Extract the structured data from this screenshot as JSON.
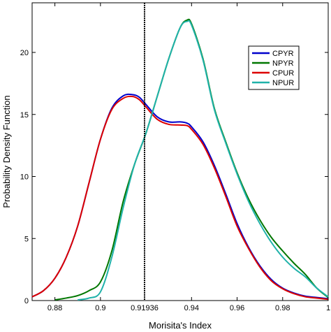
{
  "chart_data": {
    "type": "line",
    "title": "",
    "xlabel": "Morisita's Index",
    "ylabel": "Probability Density Function",
    "xlim": [
      0.87,
      1.0
    ],
    "ylim": [
      0,
      24
    ],
    "xticks": [
      0.88,
      0.9,
      0.94,
      0.96,
      0.98,
      1
    ],
    "xtick_labels": [
      "0.88",
      "0.9",
      "0.94",
      "0.96",
      "0.98",
      "1"
    ],
    "yticks": [
      0,
      5,
      10,
      15,
      20
    ],
    "ytick_labels": [
      "0",
      "5",
      "10",
      "15",
      "20"
    ],
    "vline": {
      "x": 0.91936,
      "label": "0.91936",
      "color": "#000000"
    },
    "legend_position": "top-right",
    "grid": false,
    "series": [
      {
        "name": "CPYR",
        "color": "#0000cc",
        "x": [
          0.87,
          0.875,
          0.88,
          0.885,
          0.89,
          0.895,
          0.9,
          0.905,
          0.91,
          0.914,
          0.917,
          0.92,
          0.925,
          0.93,
          0.935,
          0.938,
          0.94,
          0.945,
          0.95,
          0.955,
          0.96,
          0.965,
          0.97,
          0.975,
          0.98,
          0.985,
          0.99,
          0.995,
          1.0
        ],
        "y": [
          0.3,
          0.8,
          1.8,
          3.5,
          6.0,
          9.5,
          13.0,
          15.5,
          16.5,
          16.6,
          16.4,
          15.8,
          14.8,
          14.4,
          14.4,
          14.3,
          14.0,
          12.8,
          10.9,
          8.6,
          6.2,
          4.3,
          2.8,
          1.7,
          1.0,
          0.6,
          0.35,
          0.25,
          0.15
        ]
      },
      {
        "name": "NPYR",
        "color": "#007700",
        "x": [
          0.88,
          0.885,
          0.89,
          0.895,
          0.9,
          0.905,
          0.91,
          0.915,
          0.92,
          0.925,
          0.93,
          0.935,
          0.938,
          0.94,
          0.945,
          0.95,
          0.955,
          0.96,
          0.965,
          0.97,
          0.975,
          0.98,
          0.985,
          0.99,
          0.995,
          1.0
        ],
        "y": [
          0.05,
          0.2,
          0.4,
          0.8,
          1.5,
          4.0,
          8.0,
          11.0,
          13.5,
          16.5,
          19.5,
          22.0,
          22.6,
          22.3,
          19.5,
          15.5,
          12.8,
          10.3,
          8.2,
          6.5,
          5.1,
          4.0,
          3.0,
          2.1,
          1.0,
          0.25
        ]
      },
      {
        "name": "CPUR",
        "color": "#dd0000",
        "x": [
          0.87,
          0.875,
          0.88,
          0.885,
          0.89,
          0.895,
          0.9,
          0.905,
          0.91,
          0.914,
          0.917,
          0.92,
          0.925,
          0.93,
          0.935,
          0.938,
          0.94,
          0.945,
          0.95,
          0.955,
          0.96,
          0.965,
          0.97,
          0.975,
          0.98,
          0.985,
          0.99,
          0.995,
          1.0
        ],
        "y": [
          0.3,
          0.8,
          1.8,
          3.5,
          6.0,
          9.5,
          13.0,
          15.4,
          16.3,
          16.45,
          16.2,
          15.6,
          14.6,
          14.2,
          14.15,
          14.1,
          13.8,
          12.6,
          10.7,
          8.4,
          6.0,
          4.2,
          2.7,
          1.6,
          0.95,
          0.55,
          0.3,
          0.2,
          0.1
        ]
      },
      {
        "name": "NPUR",
        "color": "#20b2aa",
        "x": [
          0.89,
          0.895,
          0.9,
          0.905,
          0.91,
          0.915,
          0.92,
          0.925,
          0.93,
          0.935,
          0.938,
          0.94,
          0.945,
          0.95,
          0.955,
          0.96,
          0.965,
          0.97,
          0.975,
          0.98,
          0.985,
          0.99,
          0.995,
          1.0
        ],
        "y": [
          0.05,
          0.2,
          0.7,
          3.5,
          7.5,
          11.0,
          13.5,
          16.5,
          19.5,
          22.0,
          22.5,
          22.2,
          19.4,
          15.4,
          12.7,
          10.2,
          8.0,
          6.2,
          4.7,
          3.5,
          2.6,
          1.9,
          1.0,
          0.3
        ]
      }
    ]
  }
}
